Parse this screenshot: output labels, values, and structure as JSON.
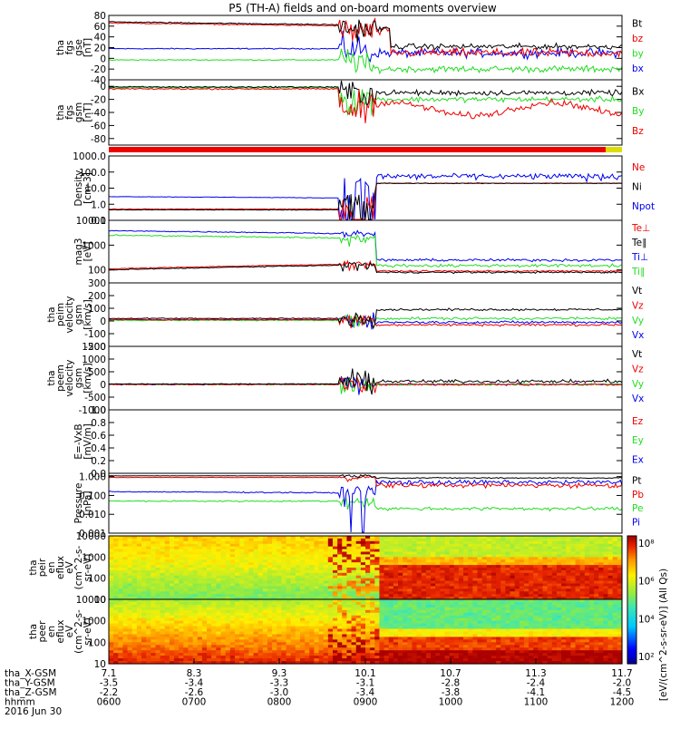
{
  "title": "P5 (TH-A) fields and on-board moments overview",
  "colors": {
    "black": "#000000",
    "red": "#ee0000",
    "green": "#22dd22",
    "blue": "#0000ee"
  },
  "chart_data": [
    {
      "id": "fgs_gse",
      "type": "line",
      "ylabel": [
        "tha",
        "fgs",
        "gse",
        "[nT]"
      ],
      "ylim": [
        -40,
        80
      ],
      "ticks": [
        80,
        60,
        40,
        20,
        0,
        -20,
        -40
      ],
      "legend": [
        {
          "name": "Bt",
          "color": "black"
        },
        {
          "name": "bz",
          "color": "red"
        },
        {
          "name": "by",
          "color": "green"
        },
        {
          "name": "bx",
          "color": "blue"
        }
      ]
    },
    {
      "id": "fgs_gsm",
      "type": "line",
      "ylabel": [
        "tha",
        "fgs",
        "gsm",
        "[nT]"
      ],
      "ylim": [
        -90,
        10
      ],
      "ticks": [
        0,
        -20,
        -40,
        -60,
        -80
      ],
      "legend": [
        {
          "name": "Bx",
          "color": "black"
        },
        {
          "name": "By",
          "color": "green"
        },
        {
          "name": "Bz",
          "color": "red"
        }
      ]
    },
    {
      "id": "density",
      "type": "line",
      "log": true,
      "ylabel": [
        "Density",
        "[cm-3]"
      ],
      "ylim": [
        0.1,
        1000
      ],
      "ticks": [
        "1000.0",
        "100.0",
        "10.0",
        "1.0",
        "0.1"
      ],
      "legend": [
        {
          "name": "Ne",
          "color": "red"
        },
        {
          "name": "Ni",
          "color": "black"
        },
        {
          "name": "Npot",
          "color": "blue"
        }
      ]
    },
    {
      "id": "temperature",
      "type": "line",
      "log": true,
      "ylabel": [
        "mag3",
        "[eV]"
      ],
      "ylim": [
        30,
        10000
      ],
      "ticks": [
        "10000",
        "1000",
        "100"
      ],
      "legend": [
        {
          "name": "Te⊥",
          "color": "red"
        },
        {
          "name": "Te∥",
          "color": "black"
        },
        {
          "name": "Ti⊥",
          "color": "blue"
        },
        {
          "name": "Ti∥",
          "color": "green"
        }
      ]
    },
    {
      "id": "ion_velocity",
      "type": "line",
      "ylabel": [
        "tha",
        "peim",
        "velocity",
        "gsm",
        "[km/s]"
      ],
      "ylim": [
        -200,
        300
      ],
      "ticks": [
        300,
        200,
        100,
        0,
        -100,
        -200
      ],
      "legend": [
        {
          "name": "Vt",
          "color": "black"
        },
        {
          "name": "Vz",
          "color": "red"
        },
        {
          "name": "Vy",
          "color": "green"
        },
        {
          "name": "Vx",
          "color": "blue"
        }
      ]
    },
    {
      "id": "electron_velocity",
      "type": "line",
      "ylabel": [
        "tha",
        "peem",
        "velocity",
        "gsm",
        "[km/s]"
      ],
      "ylim": [
        -1000,
        1500
      ],
      "ticks": [
        1500,
        1000,
        500,
        0,
        -500,
        -1000
      ],
      "legend": [
        {
          "name": "Vt",
          "color": "black"
        },
        {
          "name": "Vz",
          "color": "red"
        },
        {
          "name": "Vy",
          "color": "green"
        },
        {
          "name": "Vx",
          "color": "blue"
        }
      ]
    },
    {
      "id": "efield",
      "type": "line",
      "ylabel": [
        "E=-VxB",
        "[mV/m]"
      ],
      "ylim": [
        0,
        1
      ],
      "ticks": [
        "1.0",
        "0.8",
        "0.6",
        "0.4",
        "0.2",
        "0.0"
      ],
      "legend": [
        {
          "name": "Ez",
          "color": "red"
        },
        {
          "name": "Ey",
          "color": "green"
        },
        {
          "name": "Ex",
          "color": "blue"
        }
      ]
    },
    {
      "id": "pressure",
      "type": "line",
      "log": true,
      "ylabel": [
        "Pressure",
        "[nPa]"
      ],
      "ylim": [
        0.001,
        1.5
      ],
      "ticks": [
        "1.000",
        "0.100",
        "0.010",
        "0.001"
      ],
      "legend": [
        {
          "name": "Pt",
          "color": "black"
        },
        {
          "name": "Pb",
          "color": "red"
        },
        {
          "name": "Pe",
          "color": "green"
        },
        {
          "name": "Pi",
          "color": "blue"
        }
      ]
    },
    {
      "id": "ion_spectrogram",
      "type": "heatmap",
      "log": true,
      "ylabel": [
        "tha",
        "peir",
        "en",
        "eflux",
        "eV",
        "(cm^2-s-",
        "sr-eV)"
      ],
      "ylim": [
        10,
        10000
      ],
      "ticks": [
        "10000",
        "1000",
        "100",
        "10"
      ]
    },
    {
      "id": "electron_spectrogram",
      "type": "heatmap",
      "log": true,
      "ylabel": [
        "tha",
        "peer",
        "en",
        "eflux",
        "eV",
        "(cm^2-s-",
        "sr-eV)"
      ],
      "ylim": [
        10,
        10000
      ],
      "ticks": [
        "10000",
        "1000",
        "100",
        "10"
      ]
    }
  ],
  "colorbar": {
    "ticks": [
      "10⁸",
      "10⁶",
      "10⁴",
      "10²"
    ],
    "label": "[eV/(cm^2-s-sr-eV)] (All Qs)",
    "label2": "[eV/(cm^2-s-sr-eV)] (All Qs)"
  },
  "x_axis": {
    "rows": [
      {
        "label": "tha_X-GSM",
        "values": [
          "7.1",
          "8.3",
          "9.3",
          "10.1",
          "10.7",
          "11.3",
          "11.7"
        ]
      },
      {
        "label": "tha_Y-GSM",
        "values": [
          "-3.5",
          "-3.4",
          "-3.3",
          "-3.1",
          "-2.8",
          "-2.4",
          "-2.0"
        ]
      },
      {
        "label": "tha_Z-GSM",
        "values": [
          "-2.2",
          "-2.6",
          "-3.0",
          "-3.4",
          "-3.8",
          "-4.1",
          "-4.5"
        ]
      },
      {
        "label": "hhmm",
        "values": [
          "0600",
          "0700",
          "0800",
          "0900",
          "1000",
          "1100",
          "1200"
        ]
      }
    ],
    "date": "2016 Jun 30"
  },
  "ysl_bar_colors": {
    "main": "red",
    "end": "yellow"
  }
}
